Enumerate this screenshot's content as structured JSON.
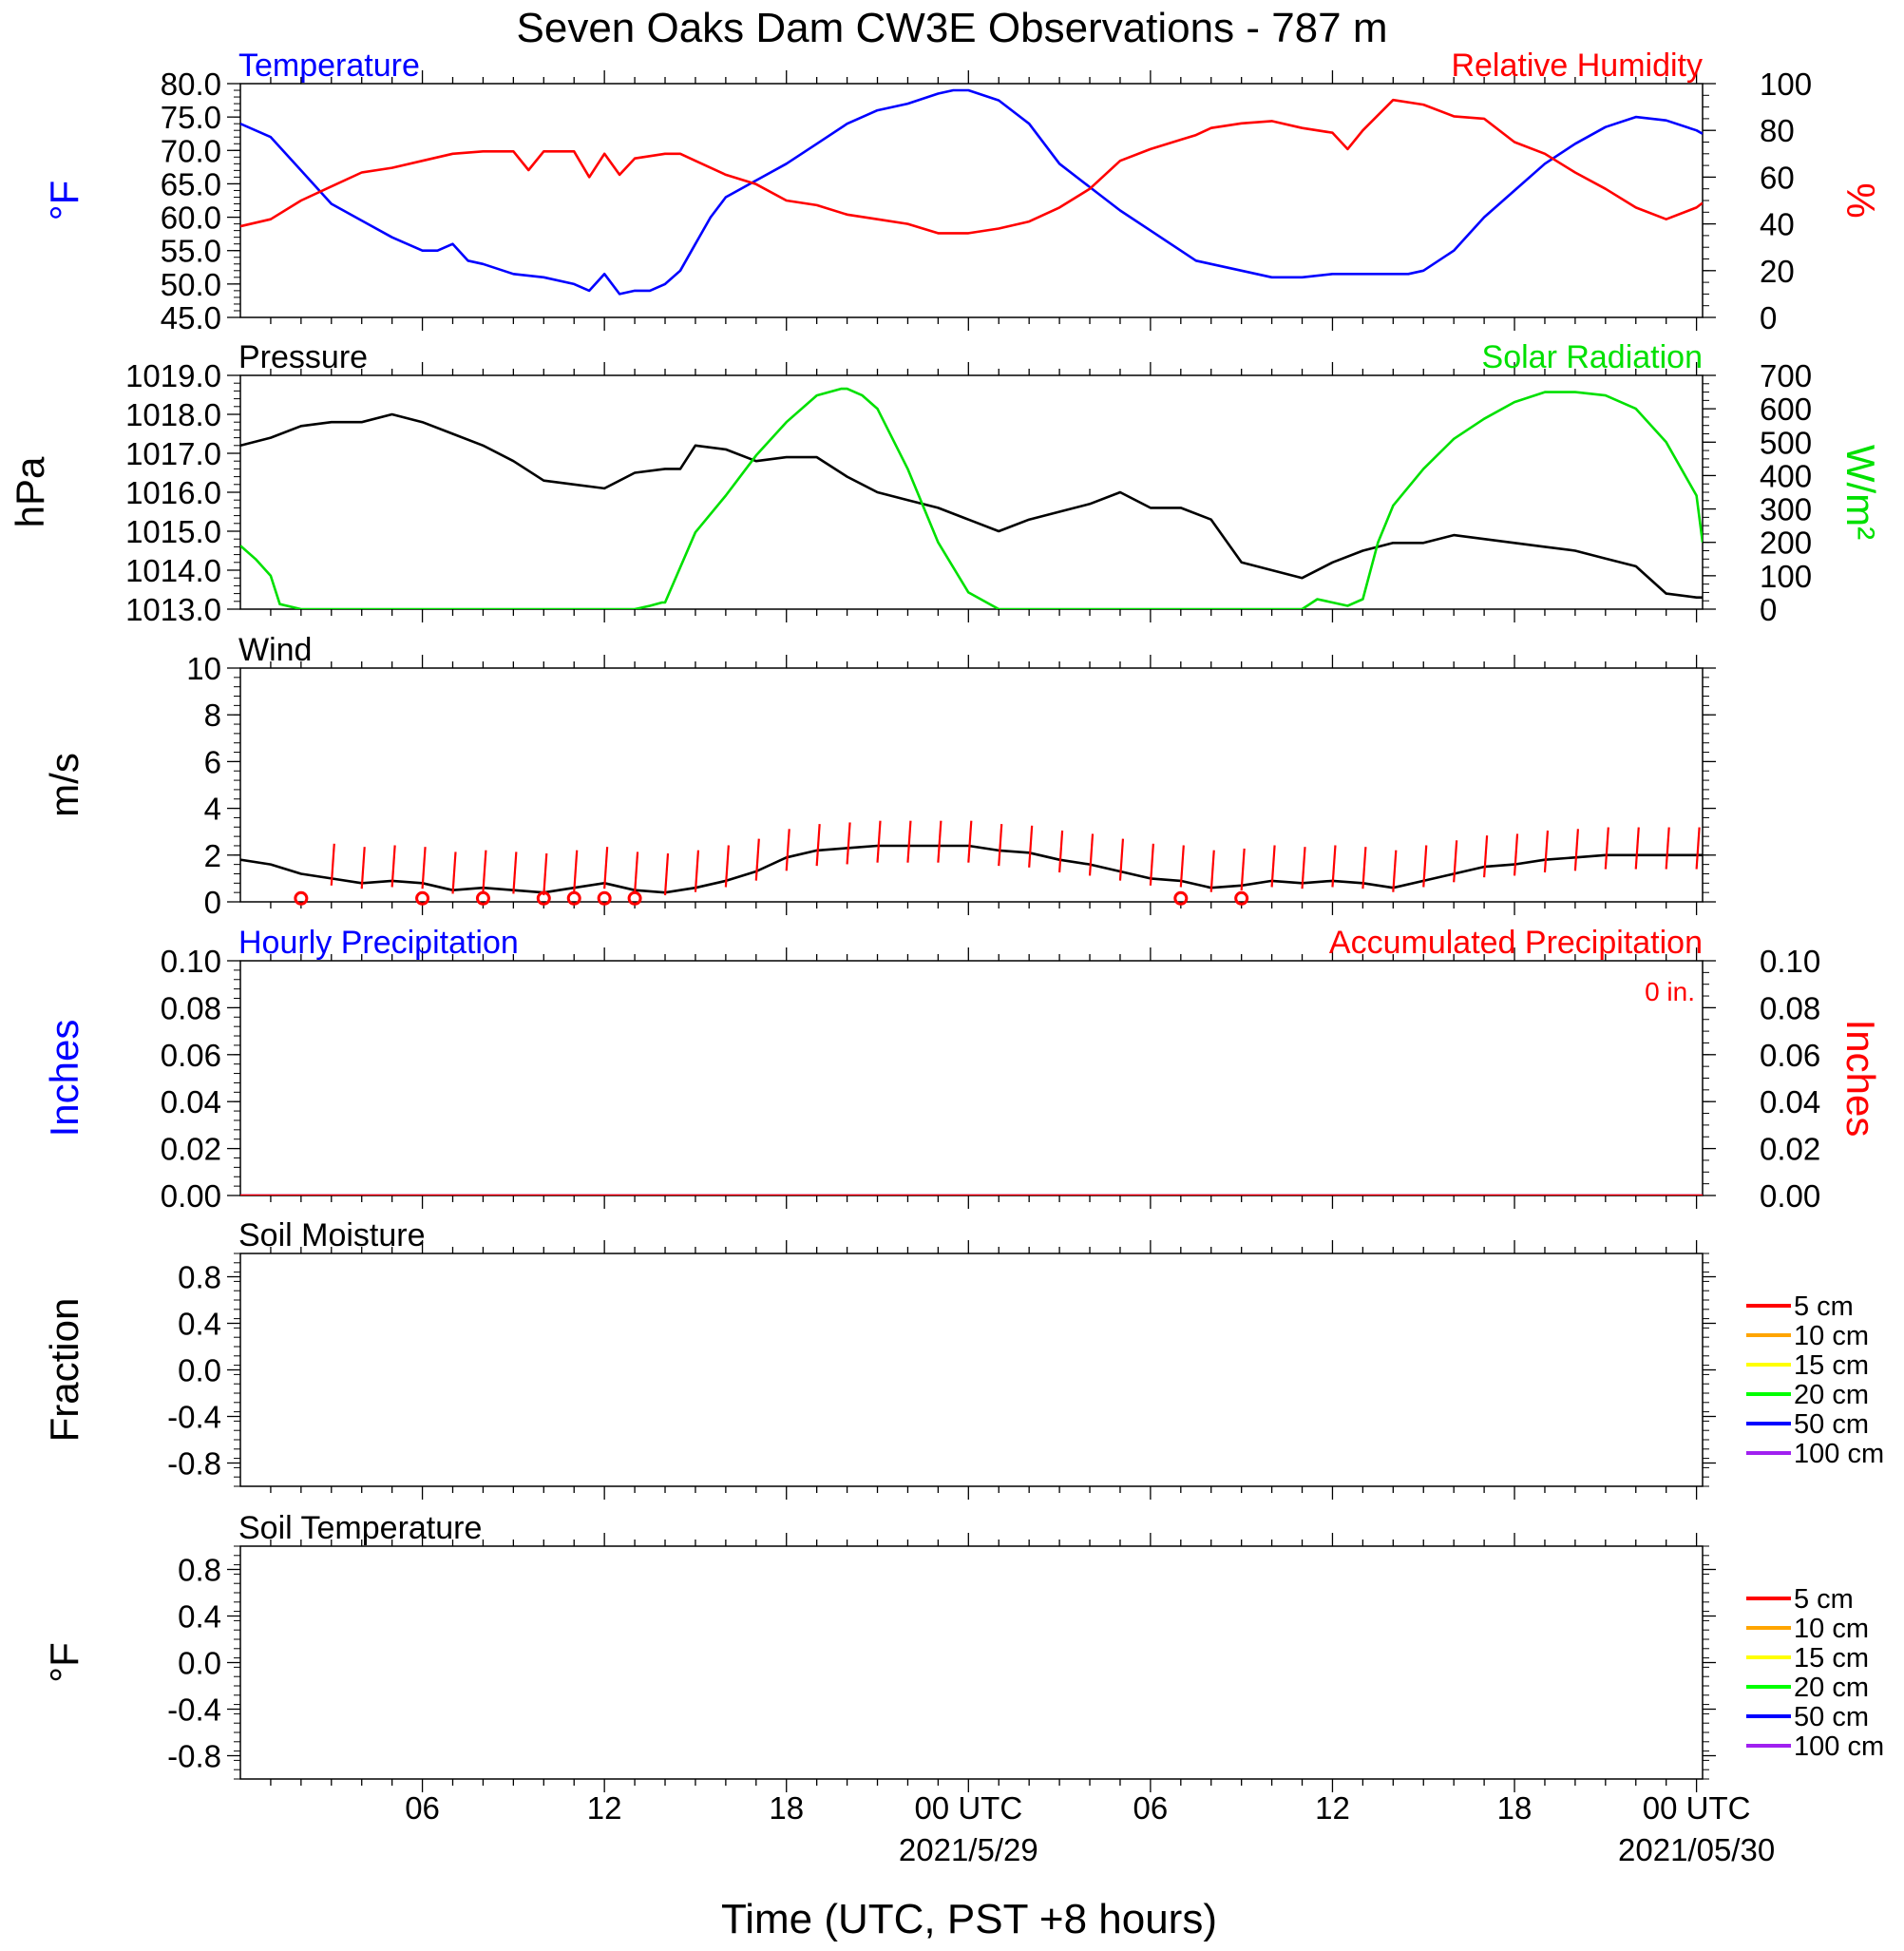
{
  "title": "Seven Oaks Dam CW3E Observations - 787 m",
  "xlabel": "Time (UTC, PST +8 hours)",
  "x_ticks": [
    {
      "hour": 6,
      "label": "06"
    },
    {
      "hour": 12,
      "label": "12"
    },
    {
      "hour": 18,
      "label": "18"
    },
    {
      "hour": 24,
      "label": "00 UTC",
      "date": "2021/5/29"
    },
    {
      "hour": 30,
      "label": "06"
    },
    {
      "hour": 36,
      "label": "12"
    },
    {
      "hour": 42,
      "label": "18"
    },
    {
      "hour": 48,
      "label": "00 UTC",
      "date": "2021/05/30"
    }
  ],
  "colors": {
    "temperature": "#0000ff",
    "humidity": "#ff0000",
    "pressure": "#000000",
    "solar": "#00e000",
    "wind": "#000000",
    "wind_barb": "#ff0000",
    "hourly_precip": "#0000ff",
    "accum_precip": "#ff0000"
  },
  "chart_data": [
    {
      "id": "temp-rh",
      "type": "line",
      "title_left": "Temperature",
      "title_right": "Relative Humidity",
      "ylabel_left": "°F",
      "ylabel_right": "%",
      "x_range": [
        0,
        48.2
      ],
      "ylim_left": [
        45,
        80
      ],
      "ylim_right": [
        0,
        100
      ],
      "yticks_left": [
        "80.0",
        "75.0",
        "70.0",
        "65.0",
        "60.0",
        "55.0",
        "50.0",
        "45.0"
      ],
      "yticks_right": [
        "100",
        "80",
        "60",
        "40",
        "20",
        "0"
      ],
      "series": [
        {
          "name": "Temperature",
          "axis": "left",
          "color": "#0000ff",
          "x": [
            0,
            1,
            2,
            3,
            4,
            5,
            6,
            6.5,
            7,
            7.5,
            8,
            9,
            10,
            11,
            11.5,
            12,
            12.5,
            13,
            13.5,
            14,
            14.5,
            15,
            15.5,
            16,
            17,
            18,
            19,
            20,
            21,
            22,
            23,
            23.5,
            24,
            25,
            26,
            27,
            28,
            29,
            30,
            31,
            31.5,
            32,
            33,
            34,
            35,
            36,
            37,
            38,
            38.5,
            39,
            40,
            41,
            42,
            43,
            44,
            45,
            46,
            47,
            48,
            48.2
          ],
          "y": [
            74,
            72,
            67,
            62,
            59.5,
            57,
            55,
            55,
            56,
            53.5,
            53,
            51.5,
            51,
            50,
            49,
            51.5,
            48.5,
            49,
            49,
            50,
            52,
            56,
            60,
            63,
            65.5,
            68,
            71,
            74,
            76,
            77,
            78.5,
            79,
            79,
            77.5,
            74,
            68,
            64.5,
            61,
            58,
            55,
            53.5,
            53,
            52,
            51,
            51,
            51.5,
            51.5,
            51.5,
            51.5,
            52,
            55,
            60,
            64,
            68,
            71,
            73.5,
            75,
            74.5,
            73,
            72.5
          ]
        },
        {
          "name": "Relative Humidity",
          "axis": "right",
          "color": "#ff0000",
          "x": [
            0,
            1,
            2,
            3,
            4,
            5,
            6,
            7,
            8,
            9,
            9.5,
            10,
            11,
            11.5,
            12,
            12.5,
            13,
            14,
            14.5,
            15,
            16,
            17,
            18,
            19,
            20,
            21,
            22,
            23,
            24,
            25,
            26,
            27,
            28,
            29,
            30,
            31,
            31.5,
            32,
            33,
            34,
            35,
            36,
            36.5,
            37,
            38,
            39,
            40,
            41,
            42,
            43,
            44,
            45,
            46,
            47,
            48,
            48.2
          ],
          "y": [
            39,
            42,
            50,
            56,
            62,
            64,
            67,
            70,
            71,
            71,
            63,
            71,
            71,
            60,
            70,
            61,
            68,
            70,
            70,
            67,
            61,
            57,
            50,
            48,
            44,
            42,
            40,
            36,
            36,
            38,
            41,
            47,
            55,
            67,
            72,
            76,
            78,
            81,
            83,
            84,
            81,
            79,
            72,
            80,
            93,
            91,
            86,
            85,
            75,
            70,
            62,
            55,
            47,
            42,
            47,
            49
          ]
        }
      ]
    },
    {
      "id": "pressure-solar",
      "type": "line",
      "title_left": "Pressure",
      "title_right": "Solar Radiation",
      "ylabel_left": "hPa",
      "ylabel_right": "W/m²",
      "x_range": [
        0,
        48.2
      ],
      "ylim_left": [
        1013,
        1019
      ],
      "ylim_right": [
        0,
        700
      ],
      "yticks_left": [
        "1019.0",
        "1018.0",
        "1017.0",
        "1016.0",
        "1015.0",
        "1014.0",
        "1013.0"
      ],
      "yticks_right": [
        "700",
        "600",
        "500",
        "400",
        "300",
        "200",
        "100",
        "0"
      ],
      "series": [
        {
          "name": "Pressure",
          "axis": "left",
          "color": "#000000",
          "x": [
            0,
            1,
            2,
            3,
            4,
            5,
            6,
            7,
            8,
            9,
            10,
            11,
            12,
            13,
            14,
            14.5,
            15,
            16,
            17,
            18,
            19,
            20,
            21,
            22,
            23,
            24,
            25,
            26,
            27,
            28,
            29,
            30,
            31,
            32,
            33,
            34,
            35,
            36,
            37,
            38,
            39,
            40,
            41,
            42,
            43,
            44,
            45,
            46,
            47,
            48,
            48.2
          ],
          "y": [
            1017.2,
            1017.4,
            1017.7,
            1017.8,
            1017.8,
            1018.0,
            1017.8,
            1017.5,
            1017.2,
            1016.8,
            1016.3,
            1016.2,
            1016.1,
            1016.5,
            1016.6,
            1016.6,
            1017.2,
            1017.1,
            1016.8,
            1016.9,
            1016.9,
            1016.4,
            1016.0,
            1015.8,
            1015.6,
            1015.3,
            1015.0,
            1015.3,
            1015.5,
            1015.7,
            1016.0,
            1015.6,
            1015.6,
            1015.3,
            1014.2,
            1014.0,
            1013.8,
            1014.2,
            1014.5,
            1014.7,
            1014.7,
            1014.9,
            1014.8,
            1014.7,
            1014.6,
            1014.5,
            1014.3,
            1014.1,
            1013.4,
            1013.3,
            1013.3
          ]
        },
        {
          "name": "Solar Radiation",
          "axis": "right",
          "color": "#00e000",
          "x": [
            0,
            0.5,
            1,
            1.3,
            2,
            4,
            6,
            8,
            10,
            11,
            11.9,
            12,
            13,
            13.5,
            13.9,
            14,
            15,
            16,
            17,
            18,
            19,
            19.8,
            20,
            20.5,
            21,
            22,
            23,
            24,
            25,
            25.5,
            26,
            27,
            28,
            30,
            32,
            34,
            35,
            35.5,
            36,
            36.5,
            37,
            37.5,
            38,
            39,
            40,
            41,
            42,
            43,
            44,
            45,
            46,
            47,
            48,
            48.2
          ],
          "y": [
            190,
            150,
            100,
            15,
            0,
            0,
            0,
            0,
            0,
            0,
            0,
            0,
            0,
            10,
            20,
            20,
            230,
            340,
            460,
            560,
            640,
            660,
            660,
            640,
            600,
            420,
            200,
            50,
            0,
            0,
            0,
            0,
            0,
            0,
            0,
            0,
            0,
            30,
            20,
            10,
            30,
            200,
            310,
            420,
            510,
            570,
            620,
            650,
            650,
            640,
            600,
            500,
            340,
            200
          ]
        }
      ]
    },
    {
      "id": "wind",
      "type": "line",
      "title_left": "Wind",
      "ylabel_left": "m/s",
      "x_range": [
        0,
        48.2
      ],
      "ylim_left": [
        0,
        10
      ],
      "yticks_left": [
        "10",
        "8",
        "6",
        "4",
        "2",
        "0"
      ],
      "series": [
        {
          "name": "Wind",
          "axis": "left",
          "color": "#000000",
          "x": [
            0,
            1,
            2,
            3,
            4,
            5,
            6,
            7,
            8,
            9,
            10,
            11,
            12,
            13,
            14,
            15,
            16,
            17,
            18,
            19,
            20,
            21,
            22,
            23,
            24,
            25,
            26,
            27,
            28,
            29,
            30,
            31,
            32,
            33,
            34,
            35,
            36,
            37,
            38,
            39,
            40,
            41,
            42,
            43,
            44,
            45,
            46,
            47,
            48,
            48.2
          ],
          "y": [
            1.8,
            1.6,
            1.2,
            1.0,
            0.8,
            0.9,
            0.8,
            0.5,
            0.6,
            0.5,
            0.4,
            0.6,
            0.8,
            0.5,
            0.4,
            0.6,
            0.9,
            1.3,
            1.9,
            2.2,
            2.3,
            2.4,
            2.4,
            2.4,
            2.4,
            2.2,
            2.1,
            1.8,
            1.6,
            1.3,
            1.0,
            0.9,
            0.6,
            0.7,
            0.9,
            0.8,
            0.9,
            0.8,
            0.6,
            0.9,
            1.2,
            1.5,
            1.6,
            1.8,
            1.9,
            2.0,
            2.0,
            2.0,
            2.0,
            2.0
          ]
        }
      ],
      "wind_barbs_x": [
        3,
        4,
        5,
        6,
        7,
        8,
        9,
        10,
        11,
        12,
        13,
        14,
        15,
        16,
        17,
        18,
        19,
        20,
        21,
        22,
        23,
        24,
        25,
        26,
        27,
        28,
        29,
        30,
        31,
        32,
        33,
        34,
        35,
        36,
        37,
        38,
        39,
        40,
        41,
        42,
        43,
        44,
        45,
        46,
        47,
        48
      ],
      "calm_circles_x": [
        2,
        6,
        8,
        10,
        11,
        12,
        13,
        31,
        33
      ]
    },
    {
      "id": "precip",
      "type": "line",
      "title_left": "Hourly Precipitation",
      "title_right": "Accumulated Precipitation",
      "accum_label": "0 in.",
      "ylabel_left": "Inches",
      "ylabel_right": "Inches",
      "x_range": [
        0,
        48.2
      ],
      "ylim_left": [
        0,
        0.1
      ],
      "ylim_right": [
        0,
        0.1
      ],
      "yticks_left": [
        "0.10",
        "0.08",
        "0.06",
        "0.04",
        "0.02",
        "0.00"
      ],
      "yticks_right": [
        "0.10",
        "0.08",
        "0.06",
        "0.04",
        "0.02",
        "0.00"
      ],
      "series": [
        {
          "name": "Hourly Precipitation",
          "axis": "left",
          "color": "#0000ff",
          "x": [
            0,
            48.2
          ],
          "y": [
            0,
            0
          ]
        },
        {
          "name": "Accumulated Precipitation",
          "axis": "right",
          "color": "#ff0000",
          "x": [
            0,
            48.2
          ],
          "y": [
            0,
            0
          ]
        }
      ]
    },
    {
      "id": "soil-moisture",
      "type": "line",
      "title_left": "Soil Moisture",
      "ylabel_left": "Fraction",
      "ylim_left": [
        -1,
        1
      ],
      "yticks_left": [
        "0.8",
        "0.4",
        "0.0",
        "-0.4",
        "-0.8"
      ],
      "legend": [
        "5 cm",
        "10 cm",
        "15 cm",
        "20 cm",
        "50 cm",
        "100 cm"
      ],
      "legend_colors": [
        "#ff0000",
        "#ffa500",
        "#ffff00",
        "#00ff00",
        "#0000ff",
        "#a020f0"
      ],
      "series": []
    },
    {
      "id": "soil-temp",
      "type": "line",
      "title_left": "Soil Temperature",
      "ylabel_left": "°F",
      "ylim_left": [
        -1,
        1
      ],
      "yticks_left": [
        "0.8",
        "0.4",
        "0.0",
        "-0.4",
        "-0.8"
      ],
      "legend": [
        "5 cm",
        "10 cm",
        "15 cm",
        "20 cm",
        "50 cm",
        "100 cm"
      ],
      "legend_colors": [
        "#ff0000",
        "#ffa500",
        "#ffff00",
        "#00ff00",
        "#0000ff",
        "#a020f0"
      ],
      "series": []
    }
  ]
}
